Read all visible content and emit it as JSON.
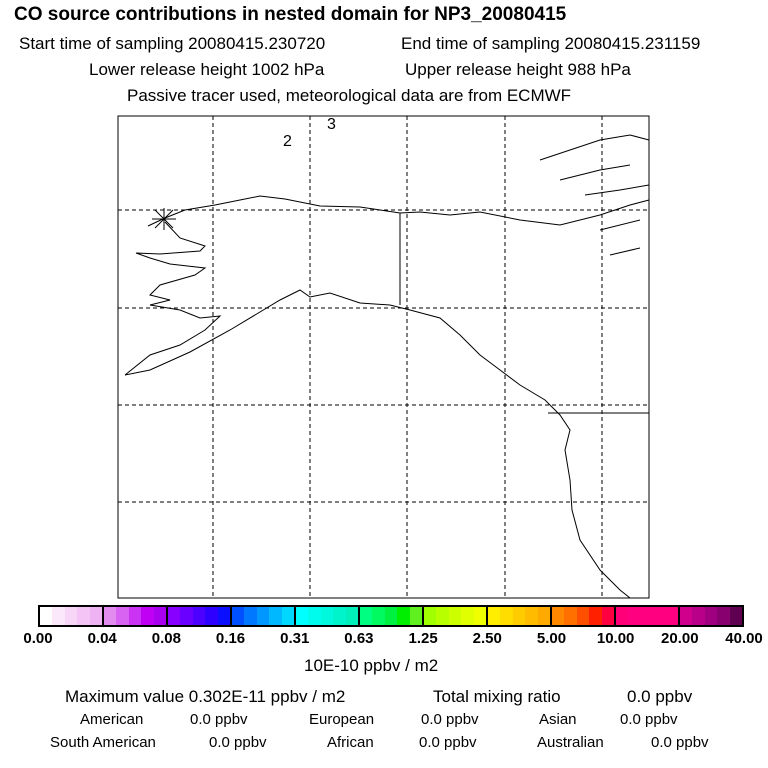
{
  "title": "CO  source contributions in nested domain for NP3_20080415",
  "start_time": "Start time of sampling 20080415.230720",
  "end_time": "End time of sampling 20080415.231159",
  "lower_height": "Lower release height 1002 hPa",
  "upper_height": "Upper release height  988 hPa",
  "tracer_note": "Passive tracer used, meteorological data are from ECMWF",
  "map_labels": [
    "2",
    "3"
  ],
  "colorbar": {
    "ticks": [
      "0.00",
      "0.04",
      "0.08",
      "0.16",
      "0.31",
      "0.63",
      "1.25",
      "2.50",
      "5.00",
      "10.00",
      "20.00",
      "40.00"
    ],
    "units": "10E-10 ppbv / m2",
    "segments": [
      [
        "#ffffff",
        "#fbe8fb",
        "#f7d6f8",
        "#f3c4f5",
        "#efb2f2"
      ],
      [
        "#e38cf0",
        "#d862f2",
        "#cb33f4",
        "#c000f5",
        "#a900f0"
      ],
      [
        "#8800ff",
        "#6a00ff",
        "#4c00ff",
        "#2e00ff",
        "#0a10ff"
      ],
      [
        "#0050ff",
        "#0078ff",
        "#0098ff",
        "#00b8ff",
        "#00d8ff"
      ],
      [
        "#00ffff",
        "#00fcec",
        "#00f8dc",
        "#00f4cc",
        "#00f0bc"
      ],
      [
        "#00ff80",
        "#00fa60",
        "#00f040",
        "#00ee00",
        "#60f020"
      ],
      [
        "#a0ff00",
        "#b8ff00",
        "#ccff00",
        "#e0ff00",
        "#f0ff00"
      ],
      [
        "#ffee00",
        "#ffdd00",
        "#ffcc00",
        "#ffbb00",
        "#ffaa00"
      ],
      [
        "#ff8800",
        "#ff7000",
        "#ff5000",
        "#ff2000",
        "#ff0040"
      ],
      [
        "#ff0078",
        "#ff0080",
        "#ff0080",
        "#ff0080",
        "#ff0080"
      ],
      [
        "#d0008c",
        "#b80088",
        "#a00080",
        "#880070",
        "#600050"
      ]
    ]
  },
  "summary": {
    "max_label": "Maximum value  0.302E-11 ppbv / m2",
    "total_label": "Total mixing ratio",
    "total_value": "0.0 ppbv",
    "regions": [
      {
        "name": "American",
        "value": "0.0 ppbv"
      },
      {
        "name": "European",
        "value": "0.0 ppbv"
      },
      {
        "name": "Asian",
        "value": "0.0 ppbv"
      },
      {
        "name": "South American",
        "value": "0.0 ppbv"
      },
      {
        "name": "African",
        "value": "0.0 ppbv"
      },
      {
        "name": "Australian",
        "value": "0.0 ppbv"
      }
    ]
  }
}
